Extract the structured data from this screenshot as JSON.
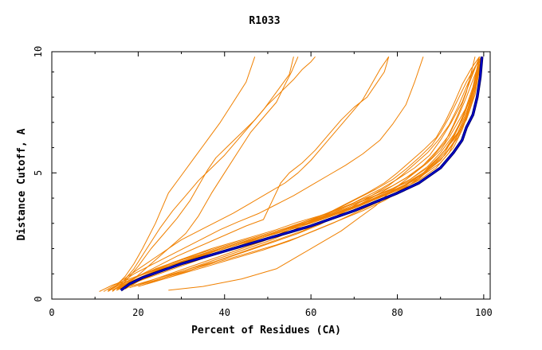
{
  "chart_data": {
    "type": "line",
    "title": "R1033",
    "xlabel": "Percent of Residues (CA)",
    "ylabel": "Distance Cutoff, A",
    "xlim": [
      0,
      101.5
    ],
    "ylim": [
      0,
      9.8
    ],
    "x_ticks": [
      0,
      20,
      40,
      60,
      80,
      100
    ],
    "x_tick_labels": [
      "0",
      "20",
      "40",
      "60",
      "80",
      "100"
    ],
    "y_ticks": [
      0,
      5,
      10
    ],
    "y_tick_labels": [
      "0",
      "5",
      "10"
    ],
    "grid": false,
    "legend": "none",
    "colors": {
      "models": "#f08000",
      "highlight": "#0000cc",
      "highlight_outline": "#000060"
    },
    "series": [
      {
        "highlight": true,
        "x": [
          16,
          18,
          21,
          25,
          30,
          35,
          40,
          45,
          50,
          55,
          60,
          65,
          70,
          75,
          80,
          85,
          90,
          93,
          95,
          96,
          97.5,
          98.5,
          99.2,
          99.6
        ],
        "y": [
          0.35,
          0.6,
          0.85,
          1.1,
          1.4,
          1.65,
          1.9,
          2.15,
          2.4,
          2.65,
          2.9,
          3.2,
          3.5,
          3.85,
          4.2,
          4.6,
          5.2,
          5.8,
          6.3,
          6.8,
          7.3,
          8.0,
          8.8,
          9.6
        ]
      },
      {
        "x": [
          11,
          14,
          18,
          22,
          26,
          30,
          35,
          40,
          45,
          50,
          55,
          60,
          65,
          70,
          75,
          80,
          85,
          90,
          93,
          95,
          96.5,
          98,
          99.5
        ],
        "y": [
          0.3,
          0.55,
          0.8,
          1.05,
          1.3,
          1.55,
          1.8,
          2.05,
          2.3,
          2.55,
          2.8,
          3.05,
          3.35,
          3.65,
          4.0,
          4.35,
          4.8,
          5.4,
          6.0,
          6.7,
          7.4,
          8.3,
          9.6
        ]
      },
      {
        "x": [
          14,
          17,
          20,
          24,
          28,
          32,
          37,
          42,
          47,
          52,
          57,
          62,
          67,
          72,
          77,
          82,
          87,
          91,
          94,
          96,
          97.5,
          99
        ],
        "y": [
          0.35,
          0.6,
          0.9,
          1.15,
          1.45,
          1.7,
          2.0,
          2.25,
          2.5,
          2.75,
          3.05,
          3.3,
          3.6,
          3.9,
          4.25,
          4.6,
          5.1,
          5.7,
          6.4,
          7.2,
          8.2,
          9.5
        ]
      },
      {
        "x": [
          15,
          18,
          22,
          26,
          31,
          36,
          41,
          46,
          51,
          56,
          61,
          66,
          71,
          76,
          81,
          86,
          90,
          93,
          95.5,
          97,
          98.5,
          99.5
        ],
        "y": [
          0.4,
          0.65,
          0.95,
          1.25,
          1.55,
          1.85,
          2.1,
          2.35,
          2.6,
          2.85,
          3.1,
          3.4,
          3.7,
          4.05,
          4.45,
          4.95,
          5.5,
          6.2,
          7.0,
          7.8,
          8.8,
          9.6
        ]
      },
      {
        "x": [
          13,
          16,
          20,
          24,
          29,
          34,
          39,
          44,
          49,
          54,
          59,
          64,
          69,
          74,
          79,
          84,
          88,
          91,
          93,
          94.5,
          96,
          97,
          98
        ],
        "y": [
          0.35,
          0.6,
          0.9,
          1.2,
          1.5,
          1.8,
          2.05,
          2.3,
          2.55,
          2.8,
          3.1,
          3.4,
          3.75,
          4.1,
          4.5,
          5.0,
          5.6,
          6.2,
          6.9,
          7.5,
          8.2,
          8.9,
          9.6
        ]
      },
      {
        "x": [
          16,
          19,
          23,
          27,
          32,
          37,
          42,
          47,
          52,
          57,
          62,
          67,
          72,
          77,
          82,
          86,
          89,
          92,
          95,
          97,
          98.5,
          99.5
        ],
        "y": [
          0.4,
          0.7,
          1.0,
          1.3,
          1.6,
          1.9,
          2.15,
          2.4,
          2.65,
          2.95,
          3.2,
          3.5,
          3.8,
          4.15,
          4.55,
          5.0,
          5.5,
          6.1,
          6.8,
          7.6,
          8.6,
          9.6
        ]
      },
      {
        "x": [
          15,
          18,
          22,
          27,
          32,
          37,
          42,
          47,
          52,
          57,
          62,
          67,
          72,
          77,
          82,
          86,
          89,
          91.5,
          94,
          96,
          98,
          99.5
        ],
        "y": [
          0.35,
          0.65,
          0.95,
          1.25,
          1.55,
          1.85,
          2.1,
          2.35,
          2.6,
          2.85,
          3.15,
          3.45,
          3.75,
          4.1,
          4.5,
          5.0,
          5.5,
          6.0,
          6.6,
          7.4,
          8.4,
          9.6
        ]
      },
      {
        "x": [
          17,
          20,
          24,
          28,
          33,
          38,
          43,
          48,
          53,
          58,
          63,
          68,
          73,
          78,
          83,
          87,
          90,
          93,
          95.5,
          97.5,
          99
        ],
        "y": [
          0.4,
          0.7,
          1.0,
          1.3,
          1.6,
          1.9,
          2.15,
          2.45,
          2.7,
          3.0,
          3.3,
          3.6,
          3.95,
          4.3,
          4.75,
          5.25,
          5.8,
          6.5,
          7.3,
          8.3,
          9.5
        ]
      },
      {
        "x": [
          14,
          17,
          21,
          25,
          30,
          35,
          40,
          45,
          50,
          55,
          60,
          65,
          70,
          75,
          80,
          85,
          89,
          92,
          94,
          96,
          97.5,
          99.7
        ],
        "y": [
          0.35,
          0.6,
          0.9,
          1.2,
          1.5,
          1.75,
          2.0,
          2.25,
          2.5,
          2.75,
          3.0,
          3.3,
          3.6,
          3.95,
          4.3,
          4.7,
          5.2,
          5.8,
          6.5,
          7.3,
          8.3,
          9.6
        ]
      },
      {
        "x": [
          18,
          21,
          25,
          29,
          34,
          39,
          44,
          49,
          54,
          59,
          64,
          69,
          74,
          79,
          83,
          87,
          90,
          93,
          96,
          98,
          99.5
        ],
        "y": [
          0.5,
          0.8,
          1.1,
          1.4,
          1.7,
          2.0,
          2.25,
          2.5,
          2.75,
          3.0,
          3.3,
          3.6,
          3.95,
          4.35,
          4.75,
          5.2,
          5.7,
          6.3,
          7.1,
          8.1,
          9.6
        ]
      },
      {
        "x": [
          27,
          35,
          44,
          52,
          57,
          62,
          67,
          71,
          75,
          78,
          81,
          84,
          87,
          90,
          92,
          94,
          96,
          98,
          99.8
        ],
        "y": [
          0.35,
          0.5,
          0.8,
          1.2,
          1.7,
          2.2,
          2.7,
          3.2,
          3.7,
          4.2,
          4.6,
          5.0,
          5.4,
          5.9,
          6.4,
          7.0,
          7.6,
          8.4,
          9.6
        ]
      },
      {
        "x": [
          20,
          25,
          31,
          37,
          43,
          49,
          55,
          60,
          65,
          70,
          75,
          80,
          85,
          88,
          91,
          93,
          95,
          97,
          99
        ],
        "y": [
          0.5,
          0.75,
          1.05,
          1.35,
          1.65,
          1.95,
          2.3,
          2.65,
          3.0,
          3.4,
          3.8,
          4.25,
          4.75,
          5.25,
          5.8,
          6.4,
          7.1,
          8.0,
          9.3
        ]
      },
      {
        "x": [
          18,
          23,
          28,
          34,
          40,
          46,
          52,
          57,
          62,
          67,
          72,
          77,
          81,
          85,
          88,
          91,
          93.5,
          95.5,
          97.5,
          99
        ],
        "y": [
          0.45,
          0.7,
          0.95,
          1.25,
          1.55,
          1.85,
          2.15,
          2.45,
          2.8,
          3.15,
          3.5,
          3.9,
          4.3,
          4.8,
          5.3,
          5.9,
          6.6,
          7.4,
          8.4,
          9.6
        ]
      },
      {
        "x": [
          17,
          22,
          28,
          34,
          40,
          46,
          52,
          57,
          62,
          66,
          70,
          74,
          78,
          81,
          84,
          87,
          89.5,
          92,
          94,
          96,
          98,
          99.5
        ],
        "y": [
          0.45,
          0.7,
          1.0,
          1.3,
          1.6,
          1.95,
          2.3,
          2.6,
          2.95,
          3.3,
          3.7,
          4.1,
          4.5,
          4.9,
          5.35,
          5.8,
          6.3,
          6.9,
          7.6,
          8.4,
          9.2,
          9.6
        ]
      },
      {
        "x": [
          22,
          28,
          33,
          38,
          43,
          48,
          53,
          58,
          62,
          66,
          70,
          74,
          78,
          82,
          86,
          89,
          92,
          94,
          96,
          98,
          99.5
        ],
        "y": [
          0.6,
          0.9,
          1.2,
          1.5,
          1.8,
          2.1,
          2.4,
          2.7,
          3.0,
          3.3,
          3.65,
          4.0,
          4.4,
          4.8,
          5.3,
          5.85,
          6.5,
          7.2,
          8.0,
          8.9,
          9.6
        ]
      },
      {
        "x": [
          19,
          24,
          29,
          34,
          39,
          44,
          49,
          53,
          57,
          61,
          65,
          69,
          73,
          77,
          80,
          83,
          86,
          89,
          91,
          93,
          95,
          97,
          99
        ],
        "y": [
          0.5,
          0.8,
          1.1,
          1.4,
          1.7,
          2.0,
          2.3,
          2.6,
          2.9,
          3.2,
          3.5,
          3.85,
          4.2,
          4.6,
          5.0,
          5.45,
          5.9,
          6.4,
          7.0,
          7.7,
          8.5,
          9.1,
          9.6
        ]
      },
      {
        "x": [
          21,
          26,
          31,
          36,
          41,
          46,
          51,
          55,
          59,
          63,
          67,
          71,
          75,
          79,
          82,
          85,
          88,
          90,
          92,
          94,
          96,
          98,
          99.5
        ],
        "y": [
          0.55,
          0.85,
          1.15,
          1.45,
          1.75,
          2.05,
          2.35,
          2.65,
          3.0,
          3.3,
          3.65,
          4.0,
          4.35,
          4.75,
          5.15,
          5.6,
          6.1,
          6.6,
          7.2,
          7.9,
          8.6,
          9.2,
          9.6
        ]
      },
      {
        "x": [
          15,
          19,
          24,
          29,
          34,
          39,
          44,
          49,
          54,
          59,
          64,
          68,
          72,
          76,
          80,
          84,
          87.5,
          90,
          92.5,
          95,
          97,
          99
        ],
        "y": [
          0.35,
          0.65,
          0.95,
          1.25,
          1.55,
          1.85,
          2.15,
          2.45,
          2.75,
          3.05,
          3.35,
          3.65,
          4.0,
          4.35,
          4.75,
          5.2,
          5.7,
          6.3,
          7.0,
          7.8,
          8.7,
          9.6
        ]
      },
      {
        "x": [
          13,
          16,
          19,
          23,
          27,
          31,
          35,
          39,
          43,
          48,
          52,
          56,
          60,
          64,
          68,
          72,
          76,
          79,
          82,
          84,
          86
        ],
        "y": [
          0.35,
          0.65,
          1.0,
          1.35,
          1.7,
          2.05,
          2.4,
          2.75,
          3.05,
          3.4,
          3.75,
          4.1,
          4.5,
          4.9,
          5.3,
          5.75,
          6.3,
          6.95,
          7.7,
          8.6,
          9.6
        ]
      },
      {
        "x": [
          14,
          17,
          21,
          25,
          29,
          33,
          37,
          41,
          45,
          49,
          53,
          55,
          58,
          61,
          64,
          67,
          70,
          73,
          75,
          77,
          77.5,
          78
        ],
        "y": [
          0.35,
          0.65,
          1.0,
          1.35,
          1.7,
          2.0,
          2.3,
          2.6,
          2.9,
          3.15,
          4.6,
          5.0,
          5.4,
          5.9,
          6.5,
          7.1,
          7.6,
          8.0,
          8.5,
          9.0,
          9.3,
          9.6
        ]
      },
      {
        "x": [
          13,
          15,
          17,
          19,
          21,
          24,
          27,
          30,
          33,
          36,
          39,
          42,
          45,
          47
        ],
        "y": [
          0.3,
          0.55,
          0.9,
          1.4,
          2.0,
          3.0,
          4.2,
          4.9,
          5.6,
          6.3,
          7.0,
          7.8,
          8.6,
          9.6
        ]
      },
      {
        "x": [
          13,
          16,
          19,
          22,
          25,
          28,
          31,
          34,
          37,
          40,
          43,
          46,
          49,
          52,
          55,
          56
        ],
        "y": [
          0.3,
          0.6,
          1.2,
          2.0,
          2.8,
          3.5,
          4.1,
          4.7,
          5.2,
          5.7,
          6.3,
          6.9,
          7.5,
          8.2,
          8.9,
          9.6
        ]
      },
      {
        "x": [
          14,
          17,
          20,
          23,
          26,
          29,
          32,
          34,
          36,
          38,
          41,
          44,
          47,
          50,
          53,
          56,
          58,
          60,
          61
        ],
        "y": [
          0.3,
          0.7,
          1.3,
          2.0,
          2.6,
          3.2,
          3.9,
          4.5,
          5.1,
          5.6,
          6.1,
          6.6,
          7.1,
          7.7,
          8.2,
          8.7,
          9.1,
          9.4,
          9.6
        ]
      },
      {
        "x": [
          15,
          19,
          23,
          27,
          31,
          34,
          37,
          40,
          43,
          46,
          49,
          52,
          54,
          55.5,
          57
        ],
        "y": [
          0.35,
          0.8,
          1.4,
          2.0,
          2.6,
          3.3,
          4.2,
          5.0,
          5.8,
          6.6,
          7.2,
          7.8,
          8.5,
          9.0,
          9.6
        ]
      },
      {
        "x": [
          12,
          15,
          18,
          21,
          24,
          27,
          30,
          34,
          38,
          42,
          46,
          50,
          54,
          57,
          60,
          63,
          66,
          69,
          72,
          74,
          76,
          78
        ],
        "y": [
          0.3,
          0.6,
          0.95,
          1.3,
          1.65,
          2.0,
          2.35,
          2.7,
          3.05,
          3.4,
          3.8,
          4.2,
          4.6,
          5.0,
          5.5,
          6.1,
          6.7,
          7.3,
          7.9,
          8.5,
          9.1,
          9.6
        ]
      }
    ]
  }
}
